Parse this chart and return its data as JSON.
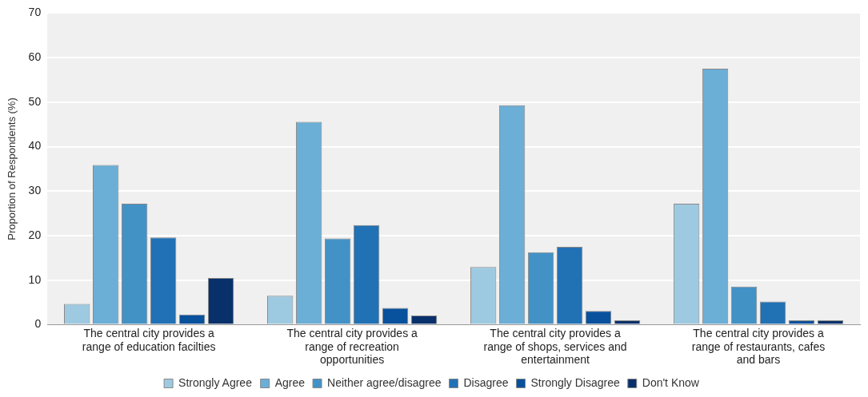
{
  "chart_data": {
    "type": "bar",
    "ylabel": "Proportion of Respondents (%)",
    "categories": [
      "The central city provides a range of education facilties",
      "The central city provides a range of recreation opportunities",
      "The central city provides a range of shops, services and entertainment",
      "The central city provides a range of restaurants, cafes and bars"
    ],
    "series": [
      {
        "name": "Strongly Agree",
        "color": "#9ecae1",
        "values": [
          4.7,
          6.5,
          13.0,
          27.2
        ]
      },
      {
        "name": "Agree",
        "color": "#6baed6",
        "values": [
          35.9,
          45.6,
          49.3,
          57.5
        ]
      },
      {
        "name": "Neither agree/disagree",
        "color": "#4292c6",
        "values": [
          27.2,
          19.4,
          16.3,
          8.6
        ]
      },
      {
        "name": "Disagree",
        "color": "#2171b5",
        "values": [
          19.6,
          22.4,
          17.5,
          5.2
        ]
      },
      {
        "name": "Strongly Disagree",
        "color": "#08519c",
        "values": [
          2.3,
          3.8,
          3.1,
          1.0
        ]
      },
      {
        "name": "Don't Know",
        "color": "#08306b",
        "values": [
          10.5,
          2.1,
          1.0,
          1.0
        ]
      }
    ],
    "ylim": [
      0,
      70
    ],
    "yticks": [
      0,
      10,
      20,
      30,
      40,
      50,
      60,
      70
    ],
    "grid": "y",
    "legend": "bottom"
  }
}
